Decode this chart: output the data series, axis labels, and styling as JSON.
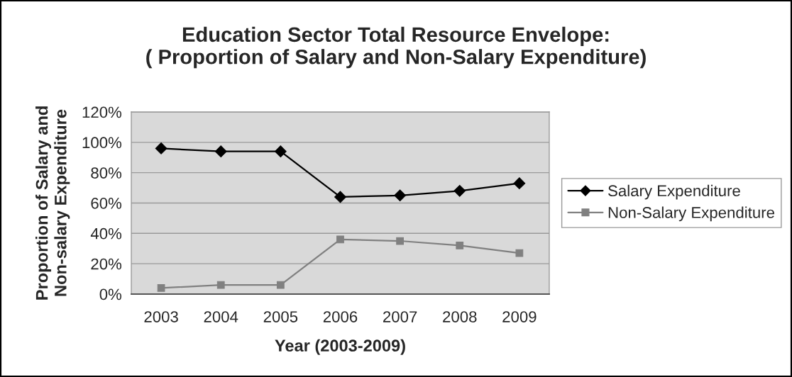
{
  "chart_data": {
    "type": "line",
    "title": "Education Sector Total Resource Envelope:\n( Proportion of Salary and Non-Salary Expenditure)",
    "xlabel": "Year (2003-2009)",
    "ylabel": "Proportion of Salary and\nNon-salary Expenditure",
    "categories": [
      "2003",
      "2004",
      "2005",
      "2006",
      "2007",
      "2008",
      "2009"
    ],
    "series": [
      {
        "name": "Salary Expenditure",
        "color": "#000000",
        "marker": "diamond",
        "values": [
          96,
          94,
          94,
          64,
          65,
          68,
          73
        ]
      },
      {
        "name": "Non-Salary Expenditure",
        "color": "#808080",
        "marker": "square",
        "values": [
          4,
          6,
          6,
          36,
          35,
          32,
          27
        ]
      }
    ],
    "ylim": [
      0,
      120
    ],
    "yticks": [
      {
        "value": 0,
        "label": "0%"
      },
      {
        "value": 20,
        "label": "20%"
      },
      {
        "value": 40,
        "label": "40%"
      },
      {
        "value": 60,
        "label": "60%"
      },
      {
        "value": 80,
        "label": "80%"
      },
      {
        "value": 100,
        "label": "100%"
      },
      {
        "value": 120,
        "label": "120%"
      }
    ],
    "grid": "y",
    "legend": "right",
    "line_style": "solid"
  }
}
